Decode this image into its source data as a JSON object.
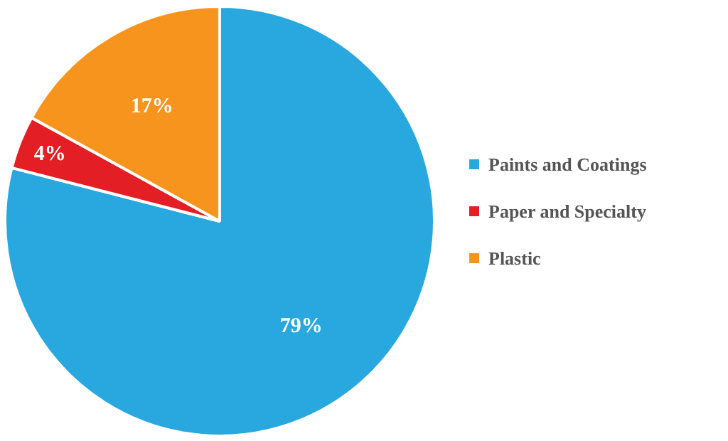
{
  "chart_data": {
    "type": "pie",
    "categories": [
      "Paints and Coatings",
      "Paper and Specialty",
      "Plastic"
    ],
    "values": [
      79,
      4,
      17
    ],
    "colors": [
      "#29a8e0",
      "#e31e24",
      "#f7941d"
    ],
    "value_labels": [
      "79%",
      "4%",
      "17%"
    ],
    "legend": "right"
  }
}
